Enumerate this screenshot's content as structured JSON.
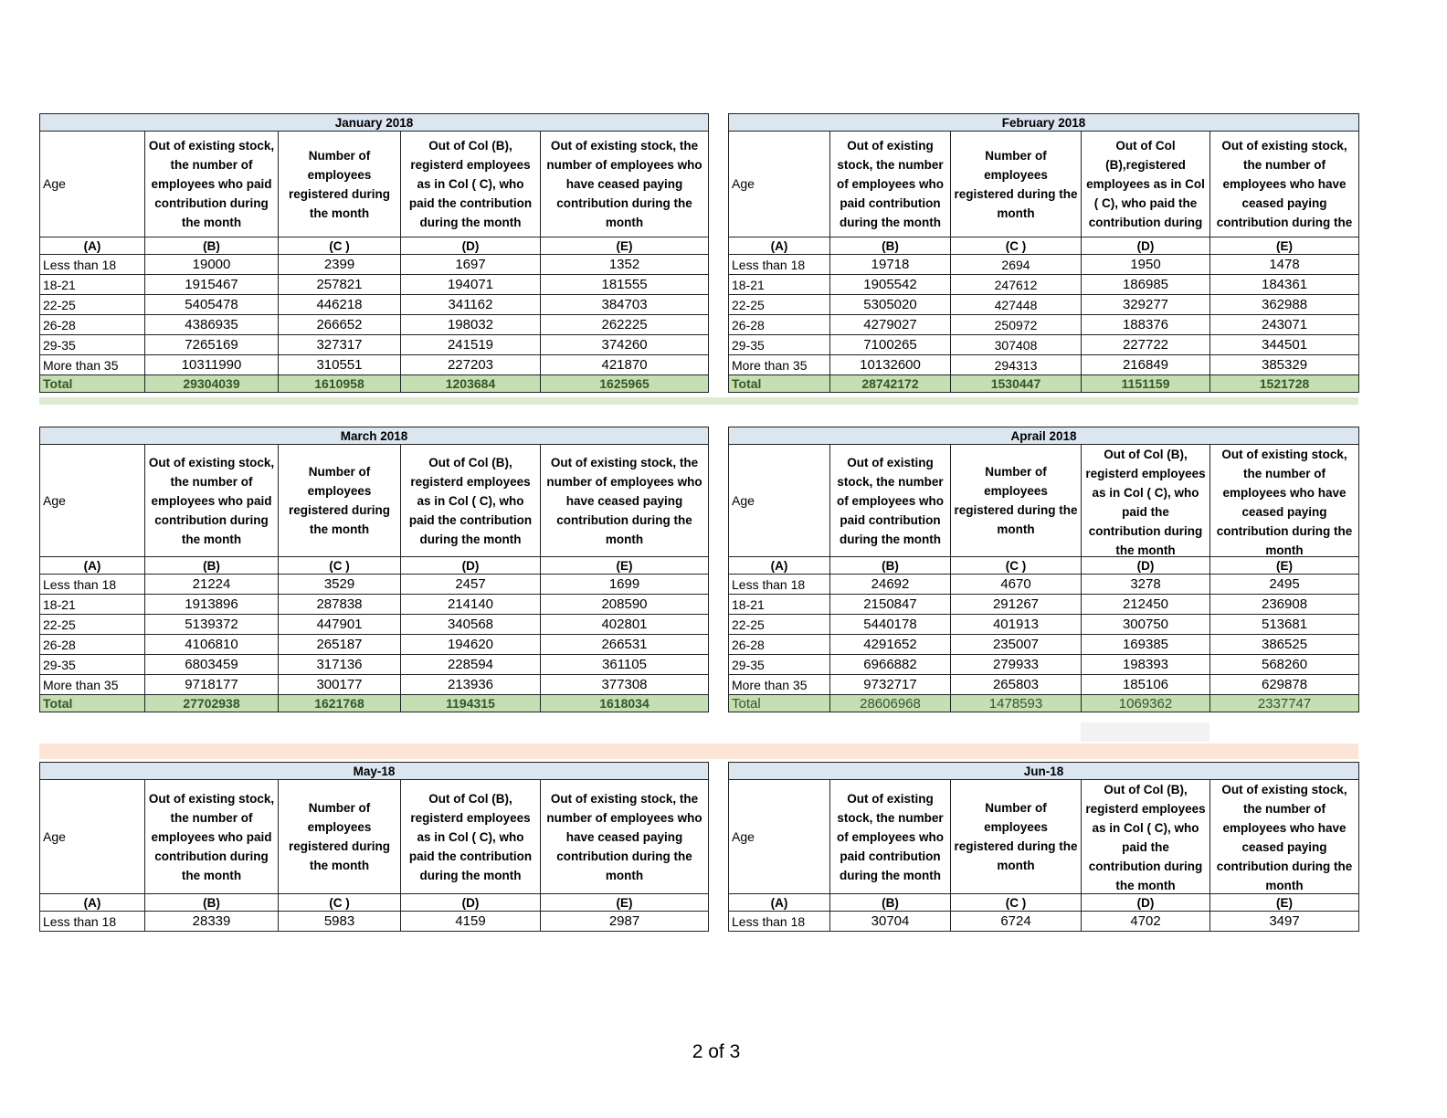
{
  "column_letters": [
    "(A)",
    "(B)",
    "(C )",
    "(D)",
    "(E)"
  ],
  "colors": {
    "title_fill": "#dce6f1",
    "total_fill": "#c4dfb3",
    "total_text": "#375623",
    "separator_peach": "#fce4d6"
  },
  "tables": [
    {
      "title": "January 2018",
      "headers": [
        "Age",
        "Out of existing stock, the number of employees who paid contribution during the month",
        "Number of employees registered during the month",
        "Out of Col (B), registerd employees as in Col ( C), who paid the contribution during the month",
        "Out of existing stock, the number of  employees who have ceased paying contribution during the month"
      ],
      "rows": [
        [
          "Less than 18",
          "19000",
          "2399",
          "1697",
          "1352"
        ],
        [
          "18-21",
          "1915467",
          "257821",
          "194071",
          "181555"
        ],
        [
          "22-25",
          "5405478",
          "446218",
          "341162",
          "384703"
        ],
        [
          "26-28",
          "4386935",
          "266652",
          "198032",
          "262225"
        ],
        [
          "29-35",
          "7265169",
          "327317",
          "241519",
          "374260"
        ],
        [
          "More than 35",
          "10311990",
          "310551",
          "227203",
          "421870"
        ]
      ],
      "total": [
        "Total",
        "29304039",
        "1610958",
        "1203684",
        "1625965"
      ]
    },
    {
      "title": "February 2018",
      "headers": [
        "Age",
        "Out of existing stock, the number of employees who paid contribution during the month",
        "Number of employees registered during the month",
        "Out of Col (B),registered employees as in Col ( C), who paid the contribution during the month",
        "Out of existing stock, the number of employees  who have ceased paying contribution during the month"
      ],
      "rows": [
        [
          "Less than 18",
          "19718",
          "2694",
          "1950",
          "1478"
        ],
        [
          "18-21",
          "1905542",
          "247612",
          "186985",
          "184361"
        ],
        [
          "22-25",
          "5305020",
          "427448",
          "329277",
          "362988"
        ],
        [
          "26-28",
          "4279027",
          "250972",
          "188376",
          "243071"
        ],
        [
          "29-35",
          "7100265",
          "307408",
          "227722",
          "344501"
        ],
        [
          "More than 35",
          "10132600",
          "294313",
          "216849",
          "385329"
        ]
      ],
      "total": [
        "Total",
        "28742172",
        "1530447",
        "1151159",
        "1521728"
      ]
    },
    {
      "title": "March 2018",
      "headers": [
        "Age",
        "Out of existing stock, the number of employees who paid contribution during the month",
        "Number of employees registered during the month",
        "Out of Col (B), registerd employees as in Col ( C), who paid the contribution during the month",
        "Out of existing stock, the number of  employees who have ceased paying contribution during the month"
      ],
      "rows": [
        [
          "Less than 18",
          "21224",
          "3529",
          "2457",
          "1699"
        ],
        [
          "18-21",
          "1913896",
          "287838",
          "214140",
          "208590"
        ],
        [
          "22-25",
          "5139372",
          "447901",
          "340568",
          "402801"
        ],
        [
          "26-28",
          "4106810",
          "265187",
          "194620",
          "266531"
        ],
        [
          "29-35",
          "6803459",
          "317136",
          "228594",
          "361105"
        ],
        [
          "More than 35",
          "9718177",
          "300177",
          "213936",
          "377308"
        ]
      ],
      "total": [
        "Total",
        "27702938",
        "1621768",
        "1194315",
        "1618034"
      ]
    },
    {
      "title": "Aprail 2018",
      "headers": [
        "Age",
        "Out of existing stock, the number of employees who paid contribution during the month",
        "Number of employees registered during the month",
        "Out of Col (B), registerd employees as in Col ( C), who paid the contribution during the month",
        "Out of existing stock, the number of employees  who have ceased paying contribution during the month"
      ],
      "rows": [
        [
          "Less than 18",
          "24692",
          "4670",
          "3278",
          "2495"
        ],
        [
          "18-21",
          "2150847",
          "291267",
          "212450",
          "236908"
        ],
        [
          "22-25",
          "5440178",
          "401913",
          "300750",
          "513681"
        ],
        [
          "26-28",
          "4291652",
          "235007",
          "169385",
          "386525"
        ],
        [
          "29-35",
          "6966882",
          "279933",
          "198393",
          "568260"
        ],
        [
          "More than 35",
          "9732717",
          "265803",
          "185106",
          "629878"
        ]
      ],
      "total": [
        "Total",
        "28606968",
        "1478593",
        "1069362",
        "2337747"
      ]
    },
    {
      "title": "May-18",
      "headers": [
        "Age",
        "Out of existing stock, the number of employees who paid contribution during the month",
        "Number of employees registered during the month",
        "Out of Col (B), registerd employees as in Col ( C), who paid the contribution during the month",
        "Out of existing stock, the number of  employees who have ceased paying contribution during the month"
      ],
      "rows": [
        [
          "Less than 18",
          "28339",
          "5983",
          "4159",
          "2987"
        ]
      ]
    },
    {
      "title": "Jun-18",
      "headers": [
        "Age",
        "Out of existing stock, the number of employees who paid contribution during the month",
        "Number of employees registered during the month",
        "Out of Col (B), registerd employees as in Col ( C), who paid the contribution during the month",
        "Out of existing stock, the number of employees  who have ceased paying contribution during the month"
      ],
      "rows": [
        [
          "Less than 18",
          "30704",
          "6724",
          "4702",
          "3497"
        ]
      ]
    }
  ],
  "footer": {
    "page_label": "2 of 3"
  }
}
